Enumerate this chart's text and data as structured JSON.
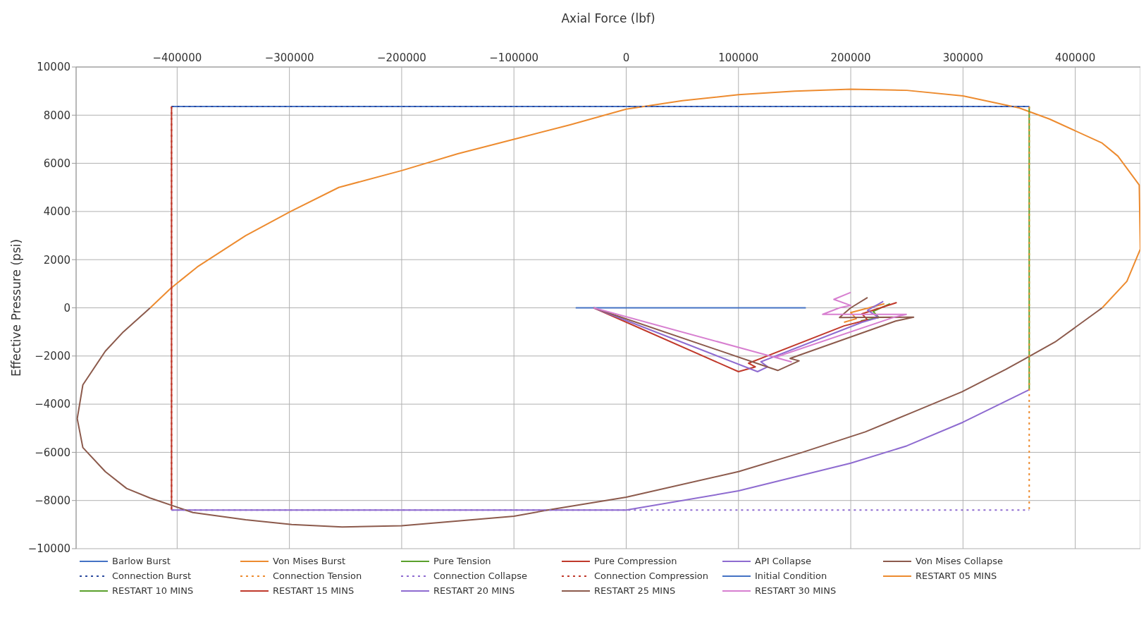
{
  "chart_data": {
    "type": "line",
    "xlabel": "Axial Force (lbf)",
    "ylabel": "Effective Pressure (psi)",
    "xlim": [
      -490000,
      458000
    ],
    "xticks": [
      -400000,
      -300000,
      -200000,
      -100000,
      0,
      100000,
      200000,
      300000,
      400000
    ],
    "ylim": [
      -10000,
      10000
    ],
    "yticks": [
      -10000,
      -8000,
      -6000,
      -4000,
      -2000,
      0,
      2000,
      4000,
      6000,
      8000,
      10000
    ],
    "grid": true,
    "legend": "bottom",
    "marker": "none",
    "series": [
      {
        "name": "Barlow Burst",
        "color": "#4472c4",
        "line_style": "solid",
        "x": [
          -405000,
          359000
        ],
        "values": [
          8360,
          8360
        ]
      },
      {
        "name": "Von Mises Burst",
        "color": "#ed8b2f",
        "line_style": "solid",
        "x": [
          -424000,
          -406000,
          -382000,
          -339000,
          -299000,
          -256000,
          -200000,
          -150000,
          -100000,
          -50000,
          0,
          50000,
          100000,
          150000,
          200000,
          250000,
          300000,
          350000,
          377000,
          424000,
          438000,
          457000,
          458000,
          446000,
          424000
        ],
        "values": [
          0,
          800,
          1700,
          3000,
          4000,
          5000,
          5700,
          6400,
          7000,
          7600,
          8250,
          8600,
          8850,
          9000,
          9080,
          9030,
          8800,
          8300,
          7840,
          6840,
          6300,
          5100,
          2440,
          1100,
          0
        ]
      },
      {
        "name": "Pure Tension",
        "color": "#5aa02c",
        "line_style": "solid",
        "x": [
          359000,
          359000
        ],
        "values": [
          8360,
          -3400
        ]
      },
      {
        "name": "Pure Compression",
        "color": "#c0392b",
        "line_style": "solid",
        "x": [
          -405000,
          -405000
        ],
        "values": [
          8360,
          -8400
        ]
      },
      {
        "name": "API Collapse",
        "color": "#8e6bd0",
        "line_style": "solid",
        "x": [
          -405000,
          0,
          100000,
          200000,
          250000,
          300000,
          359000
        ],
        "values": [
          -8400,
          -8400,
          -7600,
          -6450,
          -5730,
          -4750,
          -3400
        ]
      },
      {
        "name": "Von Mises Collapse",
        "color": "#8c5a4c",
        "line_style": "solid",
        "x": [
          424000,
          382000,
          359000,
          338000,
          299000,
          254000,
          213000,
          157000,
          100000,
          0,
          -70000,
          -100000,
          -150000,
          -200000,
          -253000,
          -298000,
          -339000,
          -386000,
          -424000,
          -445000,
          -464000,
          -484000,
          -489000,
          -484000,
          -464000,
          -448000,
          -424000
        ],
        "values": [
          0,
          -1420,
          -2020,
          -2560,
          -3490,
          -4360,
          -5150,
          -6000,
          -6800,
          -7860,
          -8400,
          -8650,
          -8850,
          -9050,
          -9100,
          -9000,
          -8800,
          -8500,
          -7900,
          -7500,
          -6800,
          -5800,
          -4600,
          -3200,
          -1800,
          -1000,
          0
        ]
      },
      {
        "name": "Connection Burst",
        "color": "#2b4a9e",
        "line_style": "dotted",
        "x": [
          -405000,
          359000
        ],
        "values": [
          8360,
          8360
        ]
      },
      {
        "name": "Connection Tension",
        "color": "#ed8b2f",
        "line_style": "dotted",
        "x": [
          359000,
          359000
        ],
        "values": [
          8360,
          -8400
        ]
      },
      {
        "name": "Connection Collapse",
        "color": "#8e6bd0",
        "line_style": "dotted",
        "x": [
          -405000,
          359000
        ],
        "values": [
          -8400,
          -8400
        ]
      },
      {
        "name": "Connection Compression",
        "color": "#c0392b",
        "line_style": "dotted",
        "x": [
          -405000,
          -405000
        ],
        "values": [
          8360,
          -8400
        ]
      },
      {
        "name": "Initial Condition",
        "color": "#4472c4",
        "line_style": "solid",
        "x": [
          -45000,
          160000
        ],
        "values": [
          0,
          0
        ]
      },
      {
        "name": "RESTART 05 MINS",
        "color": "#ed8b2f",
        "line_style": "solid",
        "x": [
          194000,
          205000,
          200000,
          230000
        ],
        "values": [
          -600,
          -450,
          -200,
          170
        ]
      },
      {
        "name": "RESTART 10 MINS",
        "color": "#5aa02c",
        "line_style": "solid",
        "x": [
          209000,
          225000,
          220000,
          235000
        ],
        "values": [
          -540,
          -400,
          -150,
          170
        ]
      },
      {
        "name": "RESTART 15 MINS",
        "color": "#c0392b",
        "line_style": "solid",
        "x": [
          -29000,
          100000,
          115000,
          109000,
          194000,
          215000,
          210000,
          241000
        ],
        "values": [
          0,
          -2650,
          -2450,
          -2300,
          -750,
          -500,
          -250,
          220
        ]
      },
      {
        "name": "RESTART 20 MINS",
        "color": "#8e6bd0",
        "line_style": "solid",
        "x": [
          -29000,
          117000,
          126000,
          120000,
          210000,
          225000,
          215000,
          229000
        ],
        "values": [
          0,
          -2650,
          -2450,
          -2240,
          -600,
          -400,
          -100,
          270
        ]
      },
      {
        "name": "RESTART 25 MINS",
        "color": "#8c5a4c",
        "line_style": "solid",
        "x": [
          -29000,
          135000,
          154000,
          146000,
          240000,
          256000,
          250000,
          190000,
          195000,
          200000,
          215000
        ],
        "values": [
          0,
          -2600,
          -2200,
          -2100,
          -550,
          -390,
          -390,
          -400,
          -200,
          0,
          430
        ]
      },
      {
        "name": "RESTART 30 MINS",
        "color": "#d77fd0",
        "line_style": "solid",
        "x": [
          -29000,
          147000,
          140000,
          133000,
          238000,
          249500,
          175000,
          190000,
          200000,
          185000,
          200000
        ],
        "values": [
          0,
          -2240,
          -2150,
          -2050,
          -400,
          -270,
          -270,
          0,
          100,
          350,
          640
        ]
      }
    ]
  }
}
